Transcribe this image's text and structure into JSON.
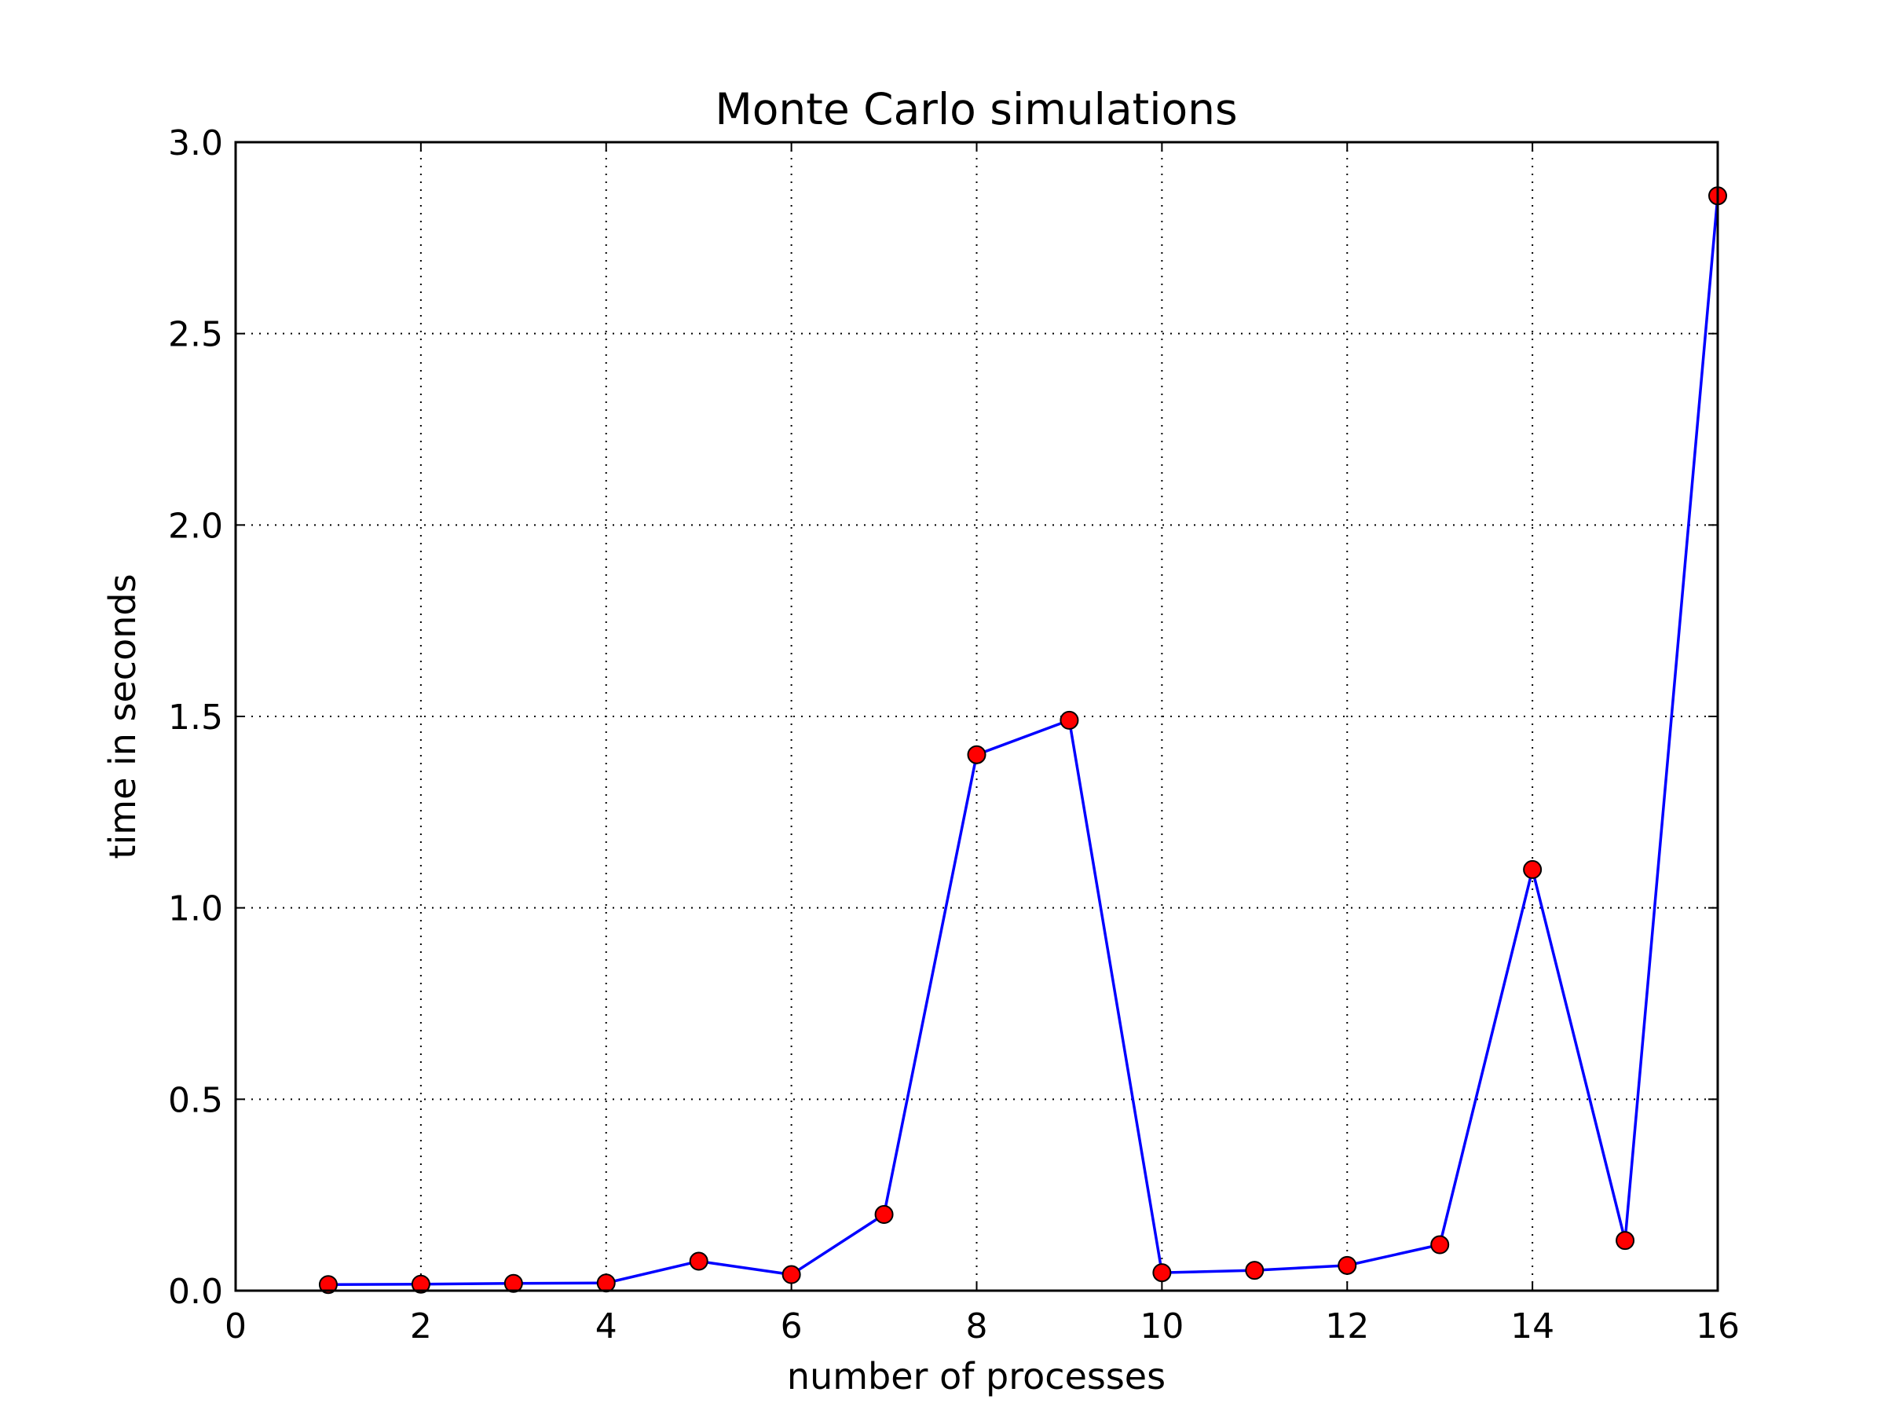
{
  "chart_data": {
    "type": "line",
    "title": "Monte Carlo simulations",
    "xlabel": "number of processes",
    "ylabel": "time in seconds",
    "xlim": [
      0,
      16
    ],
    "ylim": [
      0,
      3.0
    ],
    "xticks": [
      0,
      2,
      4,
      6,
      8,
      10,
      12,
      14,
      16
    ],
    "xtick_labels": [
      "0",
      "2",
      "4",
      "6",
      "8",
      "10",
      "12",
      "14",
      "16"
    ],
    "yticks": [
      0,
      0.5,
      1.0,
      1.5,
      2.0,
      2.5,
      3.0
    ],
    "ytick_labels": [
      "0.0",
      "0.5",
      "1.0",
      "1.5",
      "2.0",
      "2.5",
      "3.0"
    ],
    "grid": true,
    "colors": {
      "line": "#0000ff",
      "marker": "#ff0000"
    },
    "series": [
      {
        "x": [
          1,
          2,
          3,
          4,
          5,
          6,
          7,
          8,
          9,
          10,
          11,
          12,
          13,
          14,
          15,
          16
        ],
        "values": [
          0.016,
          0.017,
          0.019,
          0.02,
          0.077,
          0.042,
          0.199,
          1.4,
          1.49,
          0.047,
          0.053,
          0.066,
          0.12,
          1.1,
          0.131,
          2.86
        ]
      }
    ]
  }
}
